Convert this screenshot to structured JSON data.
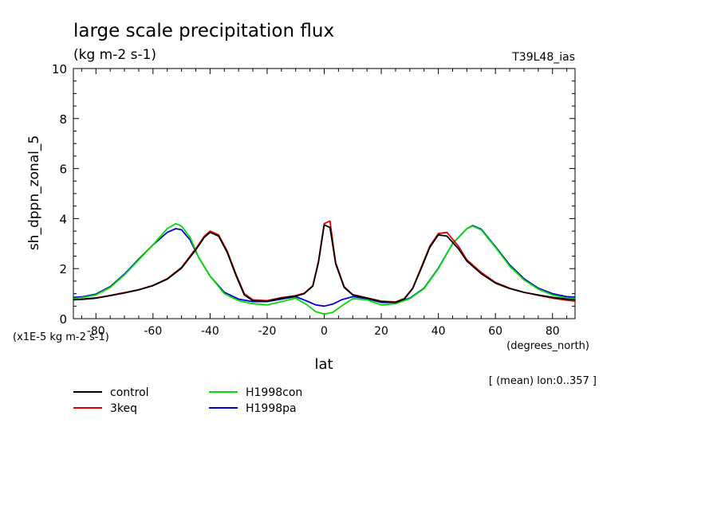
{
  "header": {
    "title": "large scale precipitation flux",
    "units": "(kg m-2 s-1)",
    "run_label": "T39L48_ias"
  },
  "axes": {
    "x_unit_note": "(degrees_north)",
    "scale_note": "(x1E-5 kg m-2 s-1)",
    "mean_note": "[ (mean) lon:0..357 ]"
  },
  "chart_data": {
    "type": "line",
    "title": "large scale precipitation flux",
    "xlabel": "lat",
    "ylabel": "sh_dppn_zonal_5",
    "xlim": [
      -87.9,
      87.9
    ],
    "ylim": [
      0,
      10
    ],
    "x_ticks": [
      -80,
      -60,
      -40,
      -20,
      0,
      20,
      40,
      60,
      80
    ],
    "x_tick_labels": [
      "-80",
      "-60",
      "-40",
      "-20",
      "0",
      "20",
      "40",
      "60",
      "80"
    ],
    "y_ticks": [
      0,
      2,
      4,
      6,
      8,
      10
    ],
    "y_tick_labels": [
      "0",
      "2",
      "4",
      "6",
      "8",
      "10"
    ],
    "legend_position": "below",
    "series": [
      {
        "name": "control",
        "color": "#000000",
        "x": [
          -88,
          -85,
          -80,
          -75,
          -70,
          -65,
          -60,
          -55,
          -50,
          -45,
          -42,
          -40,
          -37,
          -34,
          -31,
          -28,
          -25,
          -20,
          -15,
          -10,
          -7,
          -4,
          -2,
          0,
          2,
          4,
          7,
          10,
          15,
          20,
          25,
          28,
          31,
          34,
          37,
          40,
          43,
          47,
          50,
          55,
          60,
          65,
          70,
          75,
          80,
          85,
          88
        ],
        "y": [
          0.75,
          0.77,
          0.82,
          0.92,
          1.03,
          1.15,
          1.32,
          1.58,
          2.02,
          2.75,
          3.25,
          3.45,
          3.3,
          2.65,
          1.75,
          0.95,
          0.72,
          0.7,
          0.82,
          0.9,
          1.0,
          1.3,
          2.25,
          3.75,
          3.65,
          2.2,
          1.25,
          0.95,
          0.82,
          0.68,
          0.65,
          0.78,
          1.2,
          2.0,
          2.85,
          3.35,
          3.3,
          2.8,
          2.3,
          1.8,
          1.42,
          1.2,
          1.05,
          0.95,
          0.85,
          0.78,
          0.75
        ]
      },
      {
        "name": "3keq",
        "color": "#e00000",
        "x": [
          -88,
          -85,
          -80,
          -75,
          -70,
          -65,
          -60,
          -55,
          -50,
          -45,
          -42,
          -40,
          -37,
          -34,
          -31,
          -28,
          -25,
          -20,
          -15,
          -10,
          -7,
          -4,
          -2,
          0,
          2,
          4,
          7,
          10,
          15,
          20,
          25,
          28,
          31,
          34,
          37,
          40,
          43,
          47,
          50,
          55,
          60,
          65,
          70,
          75,
          80,
          85,
          88
        ],
        "y": [
          0.76,
          0.78,
          0.83,
          0.93,
          1.04,
          1.16,
          1.33,
          1.6,
          2.05,
          2.8,
          3.3,
          3.5,
          3.35,
          2.7,
          1.8,
          1.0,
          0.75,
          0.72,
          0.84,
          0.92,
          1.02,
          1.32,
          2.3,
          3.8,
          3.9,
          2.25,
          1.28,
          0.96,
          0.83,
          0.7,
          0.67,
          0.8,
          1.22,
          2.05,
          2.9,
          3.4,
          3.45,
          2.9,
          2.35,
          1.85,
          1.45,
          1.22,
          1.05,
          0.93,
          0.82,
          0.74,
          0.7
        ]
      },
      {
        "name": "H1998con",
        "color": "#00dd00",
        "x": [
          -88,
          -85,
          -80,
          -75,
          -70,
          -65,
          -60,
          -55,
          -52,
          -50,
          -47,
          -44,
          -40,
          -35,
          -30,
          -25,
          -20,
          -15,
          -10,
          -6,
          -3,
          0,
          3,
          6,
          10,
          15,
          20,
          25,
          30,
          35,
          40,
          45,
          50,
          52,
          55,
          60,
          65,
          70,
          75,
          80,
          85,
          88
        ],
        "y": [
          0.8,
          0.84,
          0.95,
          1.25,
          1.75,
          2.35,
          2.95,
          3.6,
          3.8,
          3.7,
          3.25,
          2.45,
          1.7,
          1.0,
          0.72,
          0.6,
          0.55,
          0.68,
          0.82,
          0.55,
          0.28,
          0.18,
          0.25,
          0.5,
          0.8,
          0.75,
          0.55,
          0.6,
          0.8,
          1.2,
          2.0,
          3.0,
          3.6,
          3.7,
          3.55,
          2.85,
          2.1,
          1.55,
          1.18,
          0.95,
          0.82,
          0.8
        ]
      },
      {
        "name": "H1998pa",
        "color": "#0000dd",
        "x": [
          -88,
          -85,
          -80,
          -75,
          -70,
          -65,
          -60,
          -55,
          -52,
          -50,
          -47,
          -44,
          -40,
          -35,
          -30,
          -25,
          -20,
          -15,
          -10,
          -6,
          -3,
          0,
          3,
          6,
          10,
          15,
          20,
          25,
          30,
          35,
          40,
          45,
          50,
          52,
          55,
          60,
          65,
          70,
          75,
          80,
          85,
          88
        ],
        "y": [
          0.85,
          0.87,
          0.98,
          1.28,
          1.78,
          2.38,
          2.95,
          3.45,
          3.6,
          3.55,
          3.15,
          2.45,
          1.7,
          1.05,
          0.78,
          0.68,
          0.68,
          0.78,
          0.88,
          0.7,
          0.55,
          0.5,
          0.58,
          0.75,
          0.88,
          0.8,
          0.65,
          0.65,
          0.82,
          1.22,
          2.02,
          3.0,
          3.6,
          3.72,
          3.58,
          2.88,
          2.15,
          1.6,
          1.22,
          1.0,
          0.88,
          0.86
        ]
      }
    ]
  }
}
